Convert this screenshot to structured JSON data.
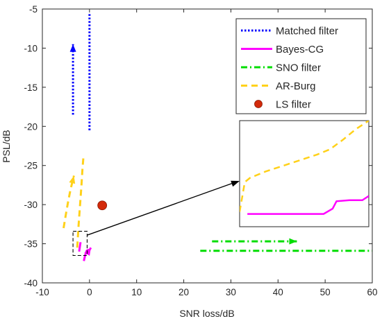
{
  "chart_data": {
    "type": "line",
    "xlabel": "SNR loss/dB",
    "ylabel": "PSL/dB",
    "xlim": [
      -10,
      60
    ],
    "ylim": [
      -40,
      -5
    ],
    "xticks": [
      -10,
      0,
      10,
      20,
      30,
      40,
      50,
      60
    ],
    "yticks": [
      -40,
      -35,
      -30,
      -25,
      -20,
      -15,
      -10,
      -5
    ],
    "legend_position": "top-right",
    "series": [
      {
        "name": "Matched filter",
        "color": "#0000ff",
        "style": "dotted",
        "segments": [
          {
            "x": [
              0,
              0
            ],
            "y": [
              -20.5,
              -5.5
            ]
          },
          {
            "x": [
              -3.5,
              -3.5
            ],
            "y": [
              -18.5,
              -9.5
            ],
            "arrow": true
          }
        ]
      },
      {
        "name": "Bayes-CG",
        "color": "#ff00ff",
        "style": "solid",
        "segments": [
          {
            "x": [
              -1.2,
              -0.9,
              -0.6,
              -0.3,
              0,
              0.3
            ],
            "y": [
              -37.2,
              -36.4,
              -35.9,
              -35.8,
              -35.8,
              -35.5
            ],
            "arrow": true
          },
          {
            "x": [
              -2.2,
              -2.0,
              -1.9
            ],
            "y": [
              -36.0,
              -35.2,
              -34.8
            ]
          }
        ]
      },
      {
        "name": "SNO filter",
        "color": "#00dd00",
        "style": "dashdot",
        "segments": [
          {
            "x": [
              23.5,
              60
            ],
            "y": [
              -35.9,
              -35.9
            ]
          },
          {
            "x": [
              26,
              44
            ],
            "y": [
              -34.7,
              -34.7
            ],
            "arrow": true
          }
        ]
      },
      {
        "name": "AR-Burg",
        "color": "#ffd11a",
        "style": "dashed",
        "segments": [
          {
            "x": [
              -5.5,
              -5.0,
              -4.5,
              -4.0,
              -3.3
            ],
            "y": [
              -33.0,
              -31.2,
              -29.5,
              -28.0,
              -26.3
            ],
            "arrow": true
          },
          {
            "x": [
              -2.6,
              -2.3,
              -2.0,
              -1.7,
              -1.5,
              -1.3
            ],
            "y": [
              -35.5,
              -32.5,
              -30.0,
              -27.5,
              -25.5,
              -24.0
            ]
          }
        ]
      },
      {
        "name": "LS filter",
        "color": "#d32a0a",
        "style": "marker",
        "segments": [
          {
            "x": [
              2.7
            ],
            "y": [
              -30.1
            ]
          }
        ]
      }
    ],
    "zoom_box": {
      "x": [
        -3.5,
        -0.5
      ],
      "y": [
        -36.5,
        -33.4
      ]
    },
    "inset": {
      "yellow_curve": {
        "x": [
          0.0,
          0.04,
          0.08,
          0.2,
          0.35,
          0.5,
          0.6,
          0.7,
          0.8,
          0.9,
          1.0
        ],
        "y": [
          0.14,
          0.42,
          0.46,
          0.52,
          0.58,
          0.64,
          0.68,
          0.73,
          0.82,
          0.92,
          1.0
        ]
      },
      "magenta_curve": {
        "x": [
          0.06,
          0.15,
          0.3,
          0.55,
          0.65,
          0.72,
          0.75,
          0.85,
          0.95,
          1.0
        ],
        "y": [
          0.12,
          0.12,
          0.12,
          0.12,
          0.12,
          0.17,
          0.24,
          0.25,
          0.25,
          0.29
        ]
      }
    }
  }
}
